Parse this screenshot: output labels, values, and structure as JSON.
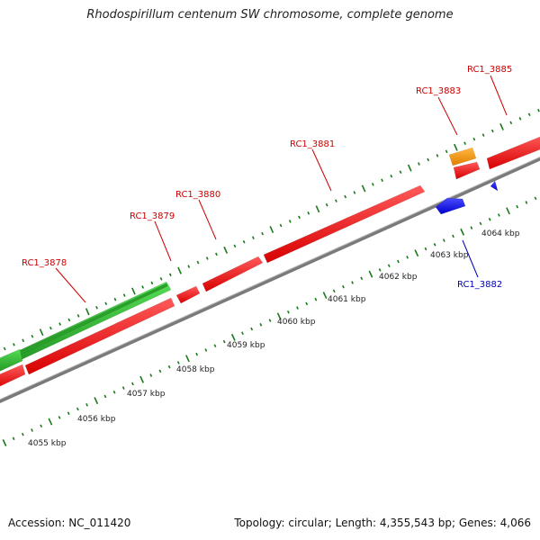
{
  "header": {
    "title": "Rhodospirillum centenum SW chromosome, complete genome"
  },
  "footer": {
    "accession": "Accession: NC_011420",
    "summary": "Topology: circular; Length: 4,355,543 bp; Genes: 4,066"
  },
  "colors": {
    "forward_cds": "#ee1111",
    "reverse_cds": "#1a1aee",
    "orange_feature": "#ff9900",
    "green_feature": "#33bb33",
    "backbone": "#8a8a8a",
    "tick": "#1a7a1a",
    "forward_label": "#cc0000",
    "reverse_label": "#0000bb"
  },
  "genes": [
    {
      "id": "RC1_3878",
      "strand": "forward"
    },
    {
      "id": "RC1_3879",
      "strand": "forward"
    },
    {
      "id": "RC1_3880",
      "strand": "forward"
    },
    {
      "id": "RC1_3881",
      "strand": "forward"
    },
    {
      "id": "RC1_3882",
      "strand": "reverse"
    },
    {
      "id": "RC1_3883",
      "strand": "forward"
    },
    {
      "id": "RC1_3885",
      "strand": "forward"
    }
  ],
  "scale_labels": [
    "4055 kbp",
    "4056 kbp",
    "4057 kbp",
    "4058 kbp",
    "4059 kbp",
    "4060 kbp",
    "4061 kbp",
    "4062 kbp",
    "4063 kbp",
    "4064 kbp"
  ]
}
